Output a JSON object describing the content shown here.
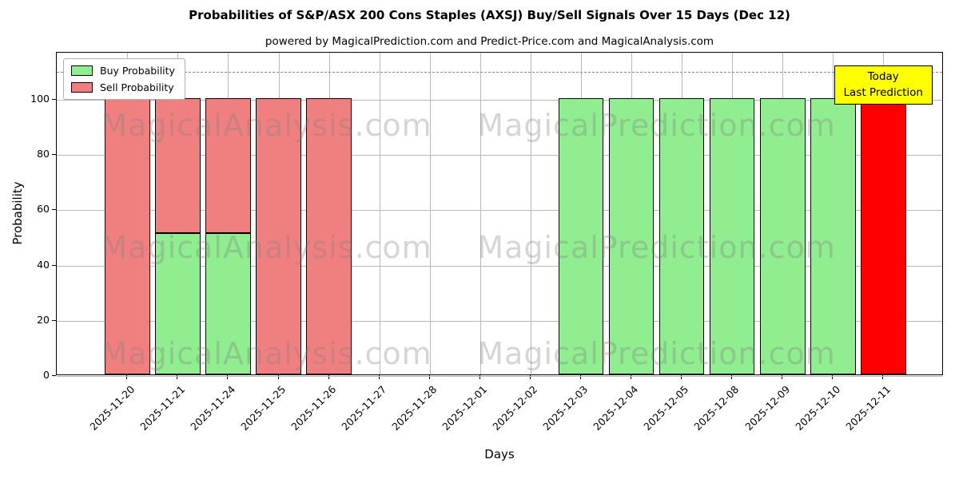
{
  "chart_data": {
    "type": "bar",
    "stacked": true,
    "title": "Probabilities of S&P/ASX 200 Cons Staples (AXSJ) Buy/Sell Signals Over 15 Days (Dec 12)",
    "subtitle": "powered by MagicalPrediction.com and Predict-Price.com and MagicalAnalysis.com",
    "xlabel": "Days",
    "ylabel": "Probability",
    "categories": [
      "2025-11-20",
      "2025-11-21",
      "2025-11-24",
      "2025-11-25",
      "2025-11-26",
      "2025-11-27",
      "2025-11-28",
      "2025-12-01",
      "2025-12-02",
      "2025-12-03",
      "2025-12-04",
      "2025-12-05",
      "2025-12-08",
      "2025-12-09",
      "2025-12-10",
      "2025-12-11"
    ],
    "series": [
      {
        "name": "Buy Probability",
        "color": "#90EE90",
        "values": [
          0,
          51,
          51,
          0,
          0,
          0,
          0,
          0,
          0,
          100,
          100,
          100,
          100,
          100,
          100,
          0
        ]
      },
      {
        "name": "Sell Probability",
        "color": "#F08080",
        "values": [
          100,
          49,
          49,
          100,
          100,
          0,
          0,
          0,
          0,
          0,
          0,
          0,
          0,
          0,
          0,
          100
        ]
      }
    ],
    "today_index": 15,
    "today_color": "#FF0000",
    "ylim": [
      0,
      117
    ],
    "yticks": [
      0,
      20,
      40,
      60,
      80,
      100
    ],
    "dashed_line_y": 110,
    "grid": true,
    "legend_position": "upper-left",
    "annotation": {
      "lines": [
        "Today",
        "Last Prediction"
      ],
      "bg_color": "#FFFF00"
    },
    "watermarks": [
      "MagicalAnalysis.com",
      "MagicalPrediction.com"
    ]
  }
}
